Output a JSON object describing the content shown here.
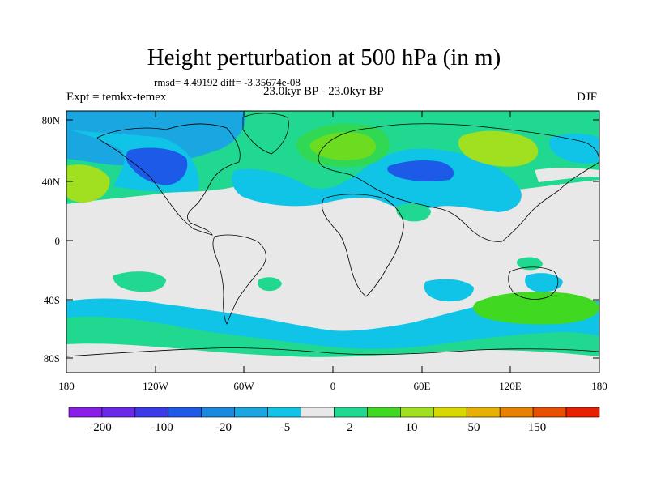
{
  "title": "Height perturbation at 500 hPa (in m)",
  "stats": "rmsd= 4.49192 diff= -3.35674e-08",
  "period": "23.0kyr BP - 23.0kyr BP",
  "experiment": "Expt = temkx-temex",
  "season": "DJF",
  "lat_labels": [
    "80N",
    "40N",
    "0",
    "40S",
    "80S"
  ],
  "lon_labels": [
    "180",
    "120W",
    "60W",
    "0",
    "60E",
    "120E",
    "180"
  ],
  "colorbar": {
    "labels": [
      "-200",
      "-100",
      "-20",
      "-5",
      "2",
      "10",
      "50",
      "150"
    ],
    "colors": [
      "#8a1ee8",
      "#6a28e8",
      "#3a3ae8",
      "#1e5ae8",
      "#1a8ae0",
      "#1aa6e0",
      "#10c4e8",
      "#e8e8e8",
      "#20d890",
      "#40d820",
      "#a0e020",
      "#d8d800",
      "#e8b000",
      "#e88000",
      "#e85000",
      "#e82000"
    ]
  },
  "field": {
    "blue_dark": "#1e5ae8",
    "blue": "#1aa6e0",
    "cyan": "#10c4e8",
    "neutral": "#e8e8e8",
    "green": "#20d890",
    "lime": "#40d820",
    "yellow": "#a0e020"
  }
}
